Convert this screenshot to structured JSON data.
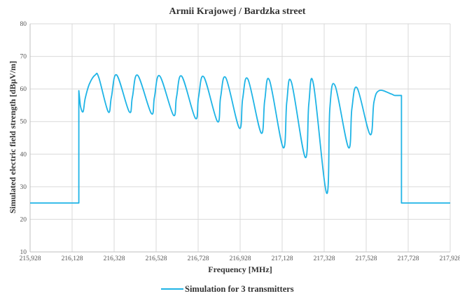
{
  "chart_data": {
    "type": "line",
    "title": "Armii Krajowej / Bardzka street",
    "xlabel": "Frequency  [MHz]",
    "ylabel": "Simulated electric field strength [dBµV/m]",
    "xlim": [
      215.928,
      217.928
    ],
    "ylim": [
      10,
      80
    ],
    "x_ticks": [
      215.928,
      216.128,
      216.328,
      216.528,
      216.728,
      216.928,
      217.128,
      217.328,
      217.528,
      217.728,
      217.928
    ],
    "x_tick_labels": [
      "215,928",
      "216,128",
      "216,328",
      "216,528",
      "216,728",
      "216,928",
      "217,128",
      "217,328",
      "217,528",
      "217,728",
      "217,928"
    ],
    "y_ticks": [
      10,
      20,
      30,
      40,
      50,
      60,
      70,
      80
    ],
    "y_tick_labels": [
      "10",
      "20",
      "30",
      "40",
      "50",
      "60",
      "70",
      "80"
    ],
    "grid": true,
    "legend_position": "bottom",
    "color": "#1fb4e6",
    "series": [
      {
        "name": "Simulation for 3 transmitters",
        "x": [
          215.928,
          216.16,
          216.16,
          216.167,
          216.18,
          216.19,
          216.21,
          216.238,
          216.255,
          216.3,
          216.315,
          216.34,
          216.4,
          216.415,
          216.44,
          216.505,
          216.52,
          216.545,
          216.61,
          216.625,
          216.65,
          216.715,
          216.73,
          216.755,
          216.82,
          216.835,
          216.86,
          216.924,
          216.94,
          216.965,
          217.028,
          217.045,
          217.068,
          217.133,
          217.15,
          217.172,
          217.238,
          217.255,
          217.277,
          217.34,
          217.355,
          217.38,
          217.444,
          217.46,
          217.485,
          217.547,
          217.565,
          217.59,
          217.646,
          217.665,
          217.696,
          217.696,
          217.928
        ],
        "y": [
          25,
          25,
          59.5,
          55,
          53,
          57,
          61.5,
          64.3,
          63.5,
          53,
          57.5,
          64.3,
          53,
          57.5,
          64.2,
          52.5,
          57.5,
          64.0,
          52,
          57.5,
          63.9,
          51,
          57.5,
          63.7,
          50,
          57.5,
          63.4,
          48,
          57.0,
          63.0,
          46.5,
          56.5,
          62.6,
          42,
          56.0,
          62.1,
          39,
          55.5,
          61.5,
          28,
          54.0,
          61.0,
          42,
          54.0,
          60.3,
          46,
          56.0,
          59.5,
          58.5,
          58,
          58,
          25,
          25
        ]
      }
    ]
  }
}
